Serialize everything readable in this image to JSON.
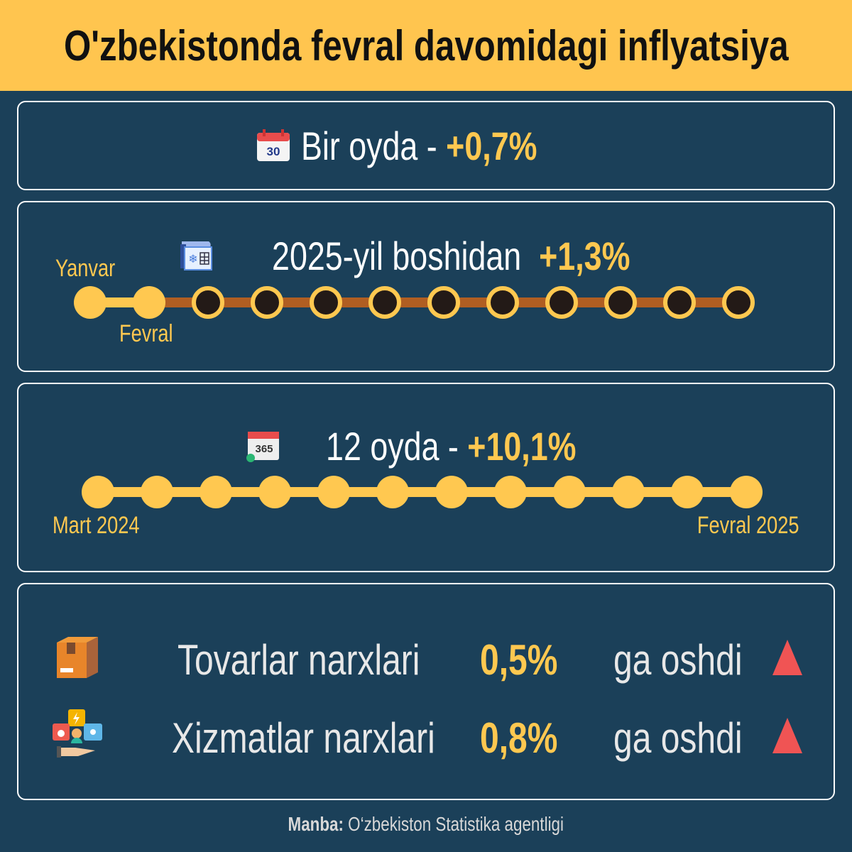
{
  "title": "O'zbekistonda fevral davomidagi inflyatsiya",
  "monthly": {
    "icon": "calendar-30-icon",
    "icon_text": "30",
    "label": "Bir oyda -",
    "value": "+0,7%"
  },
  "ytd": {
    "icon": "winter-calendar-icon",
    "label": "2025-yil boshidan",
    "value": "+1,3%",
    "start_label": "Yanvar",
    "current_label": "Fevral",
    "months_total": 12,
    "months_elapsed": 2
  },
  "annual": {
    "icon": "calendar-365-icon",
    "icon_text": "365",
    "label": "12 oyda -",
    "value": "+10,1%",
    "start_label": "Mart 2024",
    "end_label": "Fevral 2025",
    "months_total": 12,
    "months_elapsed": 12
  },
  "categories": [
    {
      "icon": "box-icon",
      "label": "Tovarlar narxlari",
      "value": "0,5%",
      "suffix": "ga oshdi",
      "trend": "up"
    },
    {
      "icon": "services-icon",
      "label": "Xizmatlar narxlari",
      "value": "0,8%",
      "suffix": "ga oshdi",
      "trend": "up"
    }
  ],
  "footer": {
    "source_label": "Manba:",
    "source": "O‘zbekiston Statistika agentligi"
  },
  "colors": {
    "background": "#1b4059",
    "header": "#ffc54f",
    "accent": "#ffc850",
    "line_future": "#b05e22",
    "dot_future": "#231a17",
    "trend_up": "#f05454"
  }
}
